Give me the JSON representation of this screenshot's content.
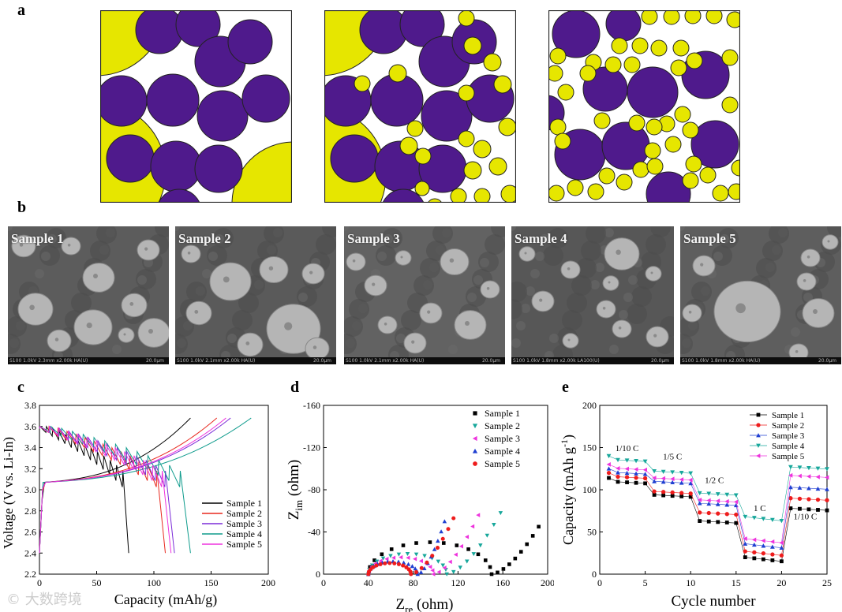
{
  "panels": {
    "a": "a",
    "b": "b",
    "c": "c",
    "d": "d",
    "e": "e"
  },
  "packing": {
    "colors": {
      "yellow": "#e6e600",
      "purple": "#4f1a8c",
      "edge": "#222222"
    }
  },
  "sem": {
    "samples": [
      {
        "title": "Sample 1",
        "footer": "S100 1.0kV 2.3mm x2.00k HA(U)",
        "scale": "20.0μm"
      },
      {
        "title": "Sample 2",
        "footer": "S100 1.0kV 2.1mm x2.00k HA(U)",
        "scale": "20.0μm"
      },
      {
        "title": "Sample 3",
        "footer": "S100 1.0kV 2.1mm x2.00k HA(U)",
        "scale": "20.0μm"
      },
      {
        "title": "Sample 4",
        "footer": "S100 1.0kV 1.8mm x2.00k LA100(U)",
        "scale": "20.0μm"
      },
      {
        "title": "Sample 5",
        "footer": "S100 1.0kV 1.8mm x2.00k HA(U)",
        "scale": "20.0μm"
      }
    ]
  },
  "chart_data": [
    {
      "type": "line",
      "xlabel": "Capacity (mAh/g)",
      "ylabel": "Voltage (V vs. Li-In)",
      "xlim": [
        0,
        200
      ],
      "ylim": [
        2.2,
        3.8
      ],
      "xticks": [
        0,
        50,
        100,
        150,
        200
      ],
      "yticks": [
        2.2,
        2.4,
        2.6,
        2.8,
        3.0,
        3.2,
        3.4,
        3.6,
        3.8
      ],
      "legend": "bottom-right",
      "series": [
        {
          "name": "Sample 1",
          "color": "#000000",
          "charge_end": 132,
          "discharge_end": 78
        },
        {
          "name": "Sample 2",
          "color": "#e8281e",
          "charge_end": 155,
          "discharge_end": 110
        },
        {
          "name": "Sample 3",
          "color": "#7b2bd8",
          "charge_end": 167,
          "discharge_end": 118
        },
        {
          "name": "Sample 4",
          "color": "#0e9b8c",
          "charge_end": 185,
          "discharge_end": 132
        },
        {
          "name": "Sample 5",
          "color": "#ee33dd",
          "charge_end": 163,
          "discharge_end": 115
        }
      ]
    },
    {
      "type": "scatter",
      "xlabel_main": "Z",
      "xlabel_sub": "re",
      "xlabel_unit": " (ohm)",
      "ylabel_main": "Z",
      "ylabel_sub": "im",
      "ylabel_unit": " (ohm)",
      "xlim": [
        0,
        200
      ],
      "ylim": [
        0,
        -160
      ],
      "xticks": [
        0,
        40,
        80,
        120,
        160,
        200
      ],
      "yticks": [
        0,
        -40,
        -80,
        -120,
        -160
      ],
      "legend": "top-right",
      "series": [
        {
          "name": "Sample 1",
          "marker": "square",
          "color": "#000000",
          "R0": 40,
          "R1": 110,
          "tail_end": [
            192,
            -45
          ]
        },
        {
          "name": "Sample 2",
          "marker": "triangle-down",
          "color": "#17a79b",
          "R0": 40,
          "R1": 70,
          "tail_end": [
            158,
            -58
          ]
        },
        {
          "name": "Sample 3",
          "marker": "triangle-left",
          "color": "#ee33dd",
          "R0": 40,
          "R1": 58,
          "tail_end": [
            138,
            -56
          ]
        },
        {
          "name": "Sample 4",
          "marker": "triangle-up",
          "color": "#1f3fd1",
          "R0": 40,
          "R1": 44,
          "tail_end": [
            108,
            -50
          ]
        },
        {
          "name": "Sample 5",
          "marker": "circle",
          "color": "#ee1c1c",
          "R0": 40,
          "R1": 38,
          "tail_end": [
            116,
            -53
          ]
        }
      ]
    },
    {
      "type": "scatter",
      "xlabel": "Cycle number",
      "ylabel_main": "Capacity (mAh g",
      "ylabel_sup": "-1",
      "ylabel_end": ")",
      "xlim": [
        0,
        25
      ],
      "ylim": [
        0,
        200
      ],
      "xticks": [
        0,
        5,
        10,
        15,
        20,
        25
      ],
      "yticks": [
        0,
        50,
        100,
        150,
        200
      ],
      "legend": "top-right",
      "rate_labels": [
        {
          "text": "1/10 C",
          "x": 3.0,
          "y": 146
        },
        {
          "text": "1/5 C",
          "x": 8.0,
          "y": 136
        },
        {
          "text": "1/2 C",
          "x": 12.6,
          "y": 108
        },
        {
          "text": "1 C",
          "x": 17.6,
          "y": 75
        },
        {
          "text": "1/10 C",
          "x": 22.6,
          "y": 65
        }
      ],
      "series": [
        {
          "name": "Sample 1",
          "marker": "square",
          "color": "#000000",
          "levels": [
            110,
            94,
            63,
            20,
            78
          ]
        },
        {
          "name": "Sample 2",
          "marker": "circle",
          "color": "#ee1c1c",
          "levels": [
            116,
            98,
            73,
            27,
            90
          ]
        },
        {
          "name": "Sample 3",
          "marker": "triangle-up",
          "color": "#1f3fd1",
          "levels": [
            121,
            110,
            84,
            36,
            103
          ]
        },
        {
          "name": "Sample 4",
          "marker": "triangle-down",
          "color": "#17a79b",
          "levels": [
            136,
            122,
            96,
            68,
            127
          ]
        },
        {
          "name": "Sample 5",
          "marker": "triangle-left",
          "color": "#ee33dd",
          "levels": [
            126,
            114,
            88,
            42,
            117
          ]
        }
      ]
    }
  ],
  "watermark": "© 大数跨境"
}
